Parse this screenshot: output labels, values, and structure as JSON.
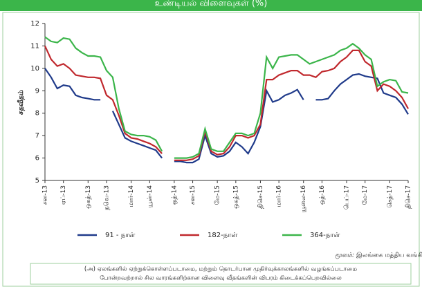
{
  "chart_data": {
    "type": "line",
    "title": "உண்டியல் விளைவுகள் (%)",
    "y_label": "சதவீதம்",
    "ylim": [
      5,
      12
    ],
    "yticks": [
      5,
      6,
      7,
      8,
      9,
      10,
      11,
      12
    ],
    "categories": [
      "சன-13",
      null,
      null,
      "ஏப்-13",
      null,
      null,
      null,
      "ஒகத்-13",
      null,
      null,
      "நவெ-13",
      null,
      null,
      null,
      "மார்-14",
      null,
      null,
      "யூன்-14",
      null,
      null,
      null,
      "ஒத்-14",
      null,
      null,
      "சன-15",
      null,
      null,
      null,
      "மே-15",
      null,
      null,
      "ஒகத்-15",
      null,
      null,
      null,
      "திசெ-15",
      null,
      null,
      "மார்-16",
      null,
      null,
      null,
      "யூலை-16",
      null,
      null,
      "ஒத்-16",
      null,
      null,
      null,
      "பெப்-17",
      null,
      null,
      "மே-17",
      null,
      null,
      null,
      "செத்-17",
      null,
      null,
      "திசெ-17"
    ],
    "series": [
      {
        "name": "91 - நாள்",
        "color": "#1f3a8a",
        "values": [
          10.0,
          9.6,
          9.1,
          9.25,
          9.2,
          8.8,
          8.7,
          8.65,
          8.6,
          8.6,
          null,
          8.1,
          7.5,
          6.9,
          6.75,
          6.65,
          6.55,
          6.45,
          6.35,
          6.0,
          null,
          5.85,
          5.85,
          5.8,
          5.8,
          5.95,
          7.0,
          6.2,
          6.05,
          6.1,
          6.3,
          6.7,
          6.5,
          6.2,
          6.7,
          7.4,
          9.0,
          8.5,
          8.6,
          8.8,
          8.9,
          9.05,
          8.6,
          null,
          8.6,
          8.6,
          8.65,
          9.0,
          9.3,
          9.5,
          9.7,
          9.75,
          9.65,
          9.6,
          9.55,
          8.9,
          8.8,
          8.7,
          8.4,
          7.95
        ]
      },
      {
        "name": "182-நாள்",
        "color": "#c0282d",
        "values": [
          11.0,
          10.4,
          10.1,
          10.2,
          10.0,
          9.7,
          9.65,
          9.6,
          9.6,
          9.55,
          8.8,
          8.6,
          7.9,
          7.1,
          6.9,
          6.85,
          6.75,
          6.65,
          6.5,
          6.2,
          null,
          5.9,
          5.9,
          5.9,
          5.95,
          6.1,
          7.2,
          6.3,
          6.15,
          6.2,
          6.5,
          7.0,
          7.0,
          6.9,
          7.0,
          7.5,
          9.5,
          9.5,
          9.7,
          9.8,
          9.9,
          9.9,
          9.7,
          9.7,
          9.6,
          9.85,
          9.9,
          10.0,
          10.3,
          10.5,
          10.8,
          10.8,
          10.3,
          10.1,
          9.0,
          9.3,
          9.2,
          9.0,
          8.7,
          8.2
        ]
      },
      {
        "name": "364-நாள்",
        "color": "#3bb54a",
        "values": [
          11.4,
          11.2,
          11.15,
          11.35,
          11.3,
          10.9,
          10.7,
          10.55,
          10.55,
          10.5,
          9.9,
          9.6,
          8.2,
          7.2,
          7.05,
          7.0,
          7.0,
          6.95,
          6.8,
          6.3,
          null,
          6.0,
          6.0,
          6.0,
          6.05,
          6.2,
          7.3,
          6.4,
          6.3,
          6.3,
          6.7,
          7.1,
          7.1,
          7.0,
          7.1,
          8.0,
          10.5,
          10.0,
          10.5,
          10.55,
          10.6,
          10.6,
          10.4,
          10.2,
          10.3,
          10.4,
          10.5,
          10.6,
          10.8,
          10.9,
          11.1,
          10.9,
          10.6,
          10.4,
          9.2,
          9.4,
          9.5,
          9.45,
          8.95,
          8.9
        ]
      }
    ],
    "source_label": "மூலம்:",
    "source": "இலங்கை மத்திய வங்கி",
    "footnote": [
      "(அ) ஏலங்களில் ஏற்றுக்கொள்ளப்படாமை, மற்றும் தொடர்பான முதிர்வுக்காலங்களில் வழங்கப்படாமை",
      "போன்றவற்றால் சில வாரங்களிற்கான விளைவு வீதங்களின் விபரம் கிடைக்கப்பெறவில்லை"
    ]
  }
}
